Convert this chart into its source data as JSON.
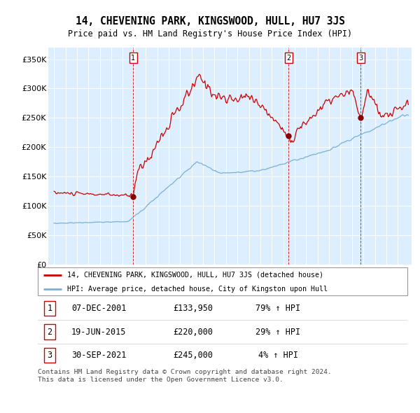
{
  "title": "14, CHEVENING PARK, KINGSWOOD, HULL, HU7 3JS",
  "subtitle": "Price paid vs. HM Land Registry's House Price Index (HPI)",
  "plot_bg_color": "#ddeeff",
  "red_line_color": "#cc0000",
  "blue_line_color": "#7ab0d4",
  "legend_entries": [
    "14, CHEVENING PARK, KINGSWOOD, HULL, HU7 3JS (detached house)",
    "HPI: Average price, detached house, City of Kingston upon Hull"
  ],
  "transactions": [
    {
      "num": 1,
      "date": "07-DEC-2001",
      "price": "£133,950",
      "change": "79% ↑ HPI",
      "year": 2001.92
    },
    {
      "num": 2,
      "date": "19-JUN-2015",
      "price": "£220,000",
      "change": "29% ↑ HPI",
      "year": 2015.46
    },
    {
      "num": 3,
      "date": "30-SEP-2021",
      "price": "£245,000",
      "change": "4% ↑ HPI",
      "year": 2021.75
    }
  ],
  "footer": "Contains HM Land Registry data © Crown copyright and database right 2024.\nThis data is licensed under the Open Government Licence v3.0.",
  "ylim": [
    0,
    370000
  ],
  "yticks": [
    0,
    50000,
    100000,
    150000,
    200000,
    250000,
    300000,
    350000
  ],
  "ytick_labels": [
    "£0",
    "£50K",
    "£100K",
    "£150K",
    "£200K",
    "£250K",
    "£300K",
    "£350K"
  ],
  "xlim_start": 1994.5,
  "xlim_end": 2026.2,
  "xticks": [
    1995,
    1996,
    1997,
    1998,
    1999,
    2000,
    2001,
    2002,
    2003,
    2004,
    2005,
    2006,
    2007,
    2008,
    2009,
    2010,
    2011,
    2012,
    2013,
    2014,
    2015,
    2016,
    2017,
    2018,
    2019,
    2020,
    2021,
    2022,
    2023,
    2024,
    2025
  ]
}
